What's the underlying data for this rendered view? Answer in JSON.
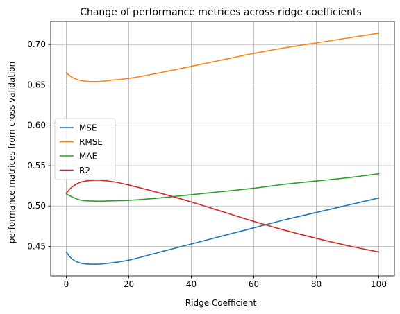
{
  "chart_data": {
    "type": "line",
    "title": "Change of performance metrices across ridge coefficients",
    "xlabel": "Ridge Coefficient",
    "ylabel": "performance matrices from cross validation",
    "xlim": [
      -5,
      105
    ],
    "ylim": [
      0.4135,
      0.7285
    ],
    "xticks": [
      0,
      20,
      40,
      60,
      80,
      100
    ],
    "yticks": [
      0.45,
      0.5,
      0.55,
      0.6,
      0.65,
      0.7
    ],
    "xtick_labels": [
      "0",
      "20",
      "40",
      "60",
      "80",
      "100"
    ],
    "ytick_labels": [
      "0.45",
      "0.50",
      "0.55",
      "0.60",
      "0.65",
      "0.70"
    ],
    "grid": true,
    "legend_position": "center-left",
    "x": [
      0,
      2,
      5,
      10,
      15,
      20,
      30,
      40,
      50,
      60,
      70,
      80,
      90,
      100
    ],
    "series": [
      {
        "name": "MSE",
        "color": "#1f77b4",
        "values": [
          0.443,
          0.434,
          0.429,
          0.428,
          0.43,
          0.433,
          0.443,
          0.453,
          0.463,
          0.473,
          0.483,
          0.492,
          0.501,
          0.51
        ]
      },
      {
        "name": "RMSE",
        "color": "#ff7f0e",
        "values": [
          0.665,
          0.659,
          0.655,
          0.654,
          0.656,
          0.658,
          0.665,
          0.673,
          0.681,
          0.689,
          0.696,
          0.702,
          0.708,
          0.714
        ]
      },
      {
        "name": "MAE",
        "color": "#2ca02c",
        "values": [
          0.515,
          0.511,
          0.507,
          0.506,
          0.5065,
          0.507,
          0.51,
          0.514,
          0.518,
          0.522,
          0.527,
          0.531,
          0.535,
          0.54
        ]
      },
      {
        "name": "R2",
        "color": "#d62728",
        "values": [
          0.516,
          0.524,
          0.53,
          0.532,
          0.53,
          0.526,
          0.516,
          0.505,
          0.493,
          0.481,
          0.47,
          0.46,
          0.451,
          0.443
        ]
      }
    ]
  }
}
